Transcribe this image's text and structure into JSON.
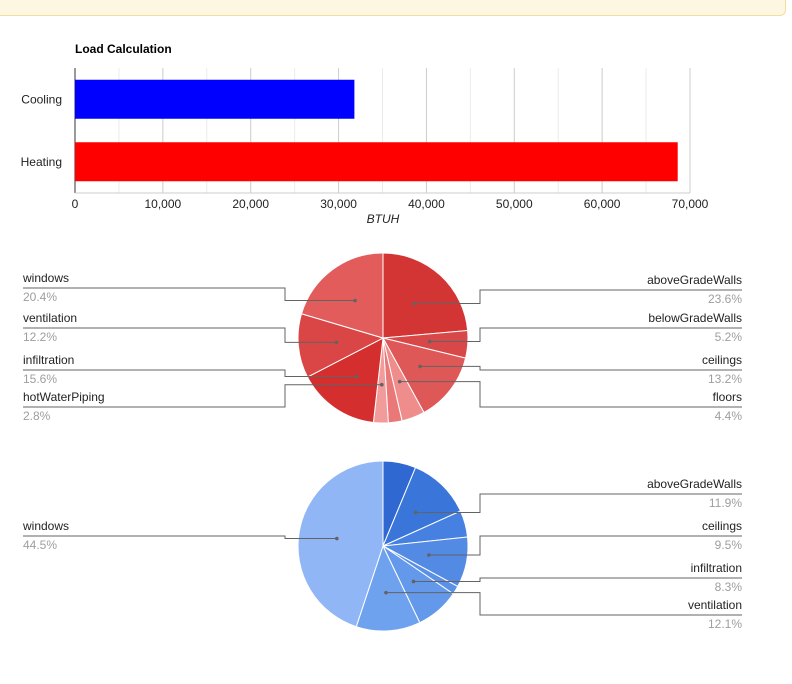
{
  "chart_data": [
    {
      "type": "bar",
      "orientation": "horizontal",
      "title": "Load Calculation",
      "xlabel": "BTUH",
      "ylabel": "",
      "categories": [
        "Cooling",
        "Heating"
      ],
      "values": [
        31800,
        68600
      ],
      "colors": [
        "#0000ff",
        "#ff0000"
      ],
      "xlim": [
        0,
        70000
      ],
      "ticks": [
        "0",
        "10,000",
        "20,000",
        "30,000",
        "40,000",
        "50,000",
        "60,000",
        "70,000"
      ],
      "grid": true
    },
    {
      "type": "pie",
      "slices": [
        {
          "label": "aboveGradeWalls",
          "value": 23.6,
          "pct": "23.6%",
          "color": "#d33535"
        },
        {
          "label": "belowGradeWalls",
          "value": 5.2,
          "pct": "5.2%",
          "color": "#d84848"
        },
        {
          "label": "ceilings",
          "value": 13.2,
          "pct": "13.2%",
          "color": "#df5858"
        },
        {
          "label": "floors",
          "value": 4.4,
          "pct": "4.4%",
          "color": "#ef8c8c"
        },
        {
          "label": "",
          "value": 2.6,
          "pct": "",
          "color": "#ea7878"
        },
        {
          "label": "hotWaterPiping",
          "value": 2.8,
          "pct": "2.8%",
          "color": "#f29b9b"
        },
        {
          "label": "infiltration",
          "value": 15.6,
          "pct": "15.6%",
          "color": "#d42e2e"
        },
        {
          "label": "ventilation",
          "value": 12.2,
          "pct": "12.2%",
          "color": "#da4545"
        },
        {
          "label": "windows",
          "value": 20.4,
          "pct": "20.4%",
          "color": "#e25c5c"
        }
      ]
    },
    {
      "type": "pie",
      "slices": [
        {
          "label": "",
          "value": 6.2,
          "pct": "",
          "color": "#2e68d0"
        },
        {
          "label": "aboveGradeWalls",
          "value": 11.9,
          "pct": "11.9%",
          "color": "#3a75da"
        },
        {
          "label": "",
          "value": 5.0,
          "pct": "",
          "color": "#4680e0"
        },
        {
          "label": "ceilings",
          "value": 9.5,
          "pct": "9.5%",
          "color": "#528ae4"
        },
        {
          "label": "",
          "value": 1.6,
          "pct": "",
          "color": "#5a90e6"
        },
        {
          "label": "infiltration",
          "value": 8.3,
          "pct": "8.3%",
          "color": "#6398ea"
        },
        {
          "label": "ventilation",
          "value": 12.1,
          "pct": "12.1%",
          "color": "#6fa2ee"
        },
        {
          "label": "windows",
          "value": 44.5,
          "pct": "44.5%",
          "color": "#90b6f5"
        }
      ]
    }
  ]
}
